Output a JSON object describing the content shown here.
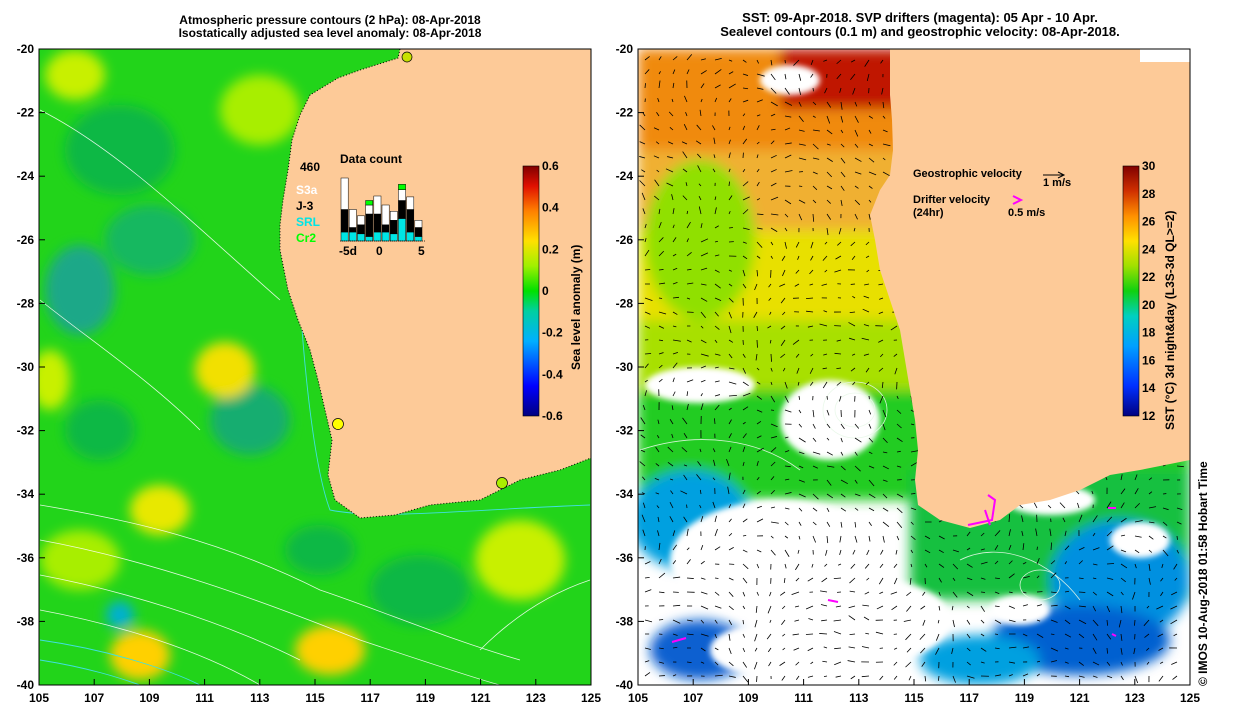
{
  "left_panel": {
    "title_line1": "Atmospheric pressure contours (2 hPa): 08-Apr-2018",
    "title_line2": "Isostatically adjusted sea level anomaly: 08-Apr-2018",
    "data_count": {
      "title": "Data count",
      "max_label": "460",
      "missions": [
        {
          "name": "S3a",
          "color": "#ffffff"
        },
        {
          "name": "J-3",
          "color": "#000000"
        },
        {
          "name": "SRL",
          "color": "#00e5e5"
        },
        {
          "name": "Cr2",
          "color": "#00ff00"
        }
      ],
      "x_ticks": [
        "-5d",
        "0",
        "5"
      ]
    },
    "colorbar": {
      "label": "Sea level anomaly (m)",
      "ticks": [
        "0.6",
        "0.4",
        "0.2",
        "0",
        "-0.2",
        "-0.4",
        "-0.6"
      ]
    }
  },
  "right_panel": {
    "title_line1": "SST: 09-Apr-2018. SVP drifters (magenta): 05 Apr - 10 Apr.",
    "title_line2": "Sealevel contours (0.1 m) and geostrophic velocity: 08-Apr-2018.",
    "geostrophic_label": "Geostrophic velocity",
    "geostrophic_scale": "1 m/s",
    "drifter_label_line1": "Drifter velocity",
    "drifter_label_line2": "(24hr)",
    "drifter_scale": "0.5 m/s",
    "colorbar": {
      "label": "SST (°C) 3d night&day (L3S-3d QL>=2)",
      "ticks": [
        "30",
        "28",
        "26",
        "24",
        "22",
        "20",
        "18",
        "16",
        "14",
        "12"
      ]
    }
  },
  "axes": {
    "lat_ticks": [
      "-20",
      "-22",
      "-24",
      "-26",
      "-28",
      "-30",
      "-32",
      "-34",
      "-36",
      "-38",
      "-40"
    ],
    "lon_ticks": [
      "105",
      "107",
      "109",
      "111",
      "113",
      "115",
      "117",
      "119",
      "121",
      "123",
      "125"
    ]
  },
  "credit": "© IMOS 10-Aug-2018 01:58 Hobart Time",
  "colors": {
    "land": "#fdca98",
    "sla_green": "#22d41a",
    "sla_yellow": "#dff000",
    "cyan_track": "#00e5e5",
    "drifter": "#ff00ff"
  }
}
